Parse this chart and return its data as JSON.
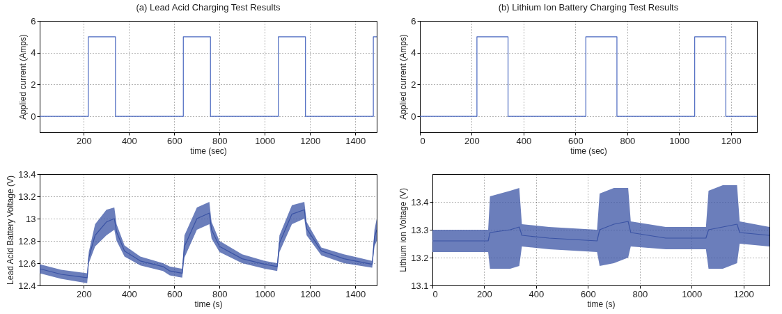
{
  "chart_data": [
    {
      "type": "step",
      "title": "(a) Lead Acid Charging Test Results",
      "xlabel": "time (sec)",
      "ylabel": "Applied current (Amps)",
      "xlim": [
        5,
        1495
      ],
      "xticks": [
        200,
        400,
        600,
        800,
        1000,
        1200,
        1400
      ],
      "ylim": [
        -1,
        6
      ],
      "yticks": [
        0,
        2,
        4,
        6
      ],
      "grid": true,
      "x": [
        5,
        220,
        340,
        640,
        760,
        1060,
        1180,
        1480,
        1495
      ],
      "series": [
        {
          "color": "#4a68c0",
          "values": [
            0,
            5,
            0,
            5,
            0,
            5,
            0,
            5,
            5
          ]
        }
      ]
    },
    {
      "type": "step",
      "title": "(b) Lithium Ion Battery Charging Test Results",
      "xlabel": "time (sec)",
      "ylabel": "Applied current (Amps)",
      "xlim": [
        0,
        1300
      ],
      "xticks": [
        0,
        200,
        400,
        600,
        800,
        1000,
        1200
      ],
      "ylim": [
        -1,
        6
      ],
      "yticks": [
        0,
        2,
        4,
        6
      ],
      "grid": true,
      "x": [
        0,
        220,
        340,
        640,
        760,
        1060,
        1180,
        1300
      ],
      "series": [
        {
          "color": "#4a68c0",
          "values": [
            0,
            5,
            0,
            5,
            0,
            5,
            0,
            0
          ]
        }
      ]
    },
    {
      "type": "line",
      "xlabel": "time (s)",
      "ylabel": "Lead Acid Battery Voltage (V)",
      "xlim": [
        5,
        1495
      ],
      "xticks": [
        200,
        400,
        600,
        800,
        1000,
        1200,
        1400
      ],
      "ylim": [
        12.4,
        13.4
      ],
      "yticks": [
        12.4,
        12.6,
        12.8,
        13,
        13.2,
        13.4
      ],
      "grid": true,
      "x": [
        5,
        100,
        215,
        222,
        250,
        300,
        335,
        345,
        380,
        450,
        550,
        580,
        635,
        645,
        700,
        755,
        765,
        800,
        900,
        1000,
        1055,
        1065,
        1120,
        1175,
        1185,
        1250,
        1350,
        1475,
        1485,
        1495
      ],
      "series": [
        {
          "color": "#3a53a4",
          "values": [
            12.55,
            12.5,
            12.47,
            12.65,
            12.85,
            12.97,
            13,
            12.88,
            12.71,
            12.62,
            12.57,
            12.53,
            12.51,
            12.75,
            13,
            13.05,
            12.9,
            12.75,
            12.64,
            12.59,
            12.57,
            12.78,
            13.04,
            13.08,
            12.91,
            12.71,
            12.64,
            12.59,
            12.83,
            12.9
          ],
          "lower": [
            12.51,
            12.46,
            12.42,
            12.6,
            12.75,
            12.85,
            12.9,
            12.8,
            12.66,
            12.58,
            12.53,
            12.49,
            12.47,
            12.65,
            12.9,
            12.95,
            12.82,
            12.7,
            12.6,
            12.55,
            12.53,
            12.7,
            12.95,
            13,
            12.85,
            12.67,
            12.6,
            12.56,
            12.75,
            12.8
          ],
          "upper": [
            12.59,
            12.54,
            12.51,
            12.7,
            12.95,
            13.08,
            13.1,
            12.95,
            12.76,
            12.66,
            12.6,
            12.57,
            12.55,
            12.85,
            13.1,
            13.15,
            12.97,
            12.8,
            12.68,
            12.62,
            12.6,
            12.85,
            13.12,
            13.15,
            12.97,
            12.74,
            12.68,
            12.62,
            12.9,
            13
          ]
        }
      ]
    },
    {
      "type": "line",
      "xlabel": "time (s)",
      "ylabel": "Lithium ion Voltage (V)",
      "xlim": [
        0,
        1300
      ],
      "xticks": [
        0,
        200,
        400,
        600,
        800,
        1000,
        1200
      ],
      "ylim": [
        13.1,
        13.5
      ],
      "yticks": [
        13.1,
        13.2,
        13.3,
        13.4
      ],
      "grid": true,
      "x": [
        0,
        100,
        215,
        222,
        300,
        335,
        345,
        450,
        635,
        645,
        700,
        755,
        765,
        900,
        1055,
        1065,
        1120,
        1175,
        1185,
        1300
      ],
      "series": [
        {
          "color": "#3a53a4",
          "values": [
            13.26,
            13.26,
            13.26,
            13.29,
            13.3,
            13.31,
            13.28,
            13.27,
            13.26,
            13.3,
            13.32,
            13.33,
            13.29,
            13.27,
            13.27,
            13.3,
            13.31,
            13.32,
            13.29,
            13.28
          ],
          "lower": [
            13.22,
            13.22,
            13.22,
            13.16,
            13.16,
            13.17,
            13.24,
            13.23,
            13.22,
            13.17,
            13.18,
            13.2,
            13.24,
            13.23,
            13.23,
            13.16,
            13.16,
            13.18,
            13.25,
            13.24
          ],
          "upper": [
            13.3,
            13.3,
            13.3,
            13.42,
            13.44,
            13.45,
            13.32,
            13.31,
            13.3,
            13.43,
            13.45,
            13.45,
            13.33,
            13.31,
            13.31,
            13.44,
            13.46,
            13.46,
            13.33,
            13.31
          ]
        }
      ]
    }
  ]
}
